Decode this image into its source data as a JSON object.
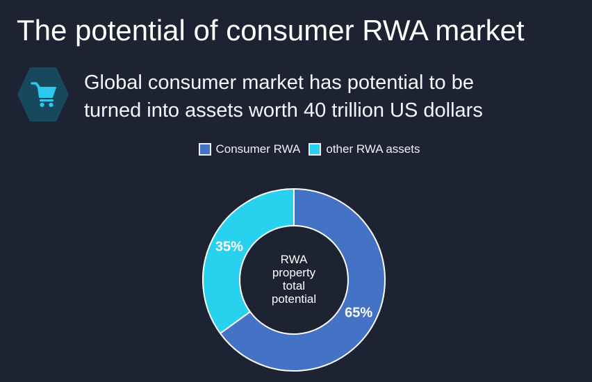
{
  "slide": {
    "background": "#1E2333",
    "title": "The potential of consumer RWA market",
    "subtitle_line1": "Global consumer market has potential to be",
    "subtitle_line2": "turned into assets worth 40 trillion US dollars"
  },
  "icon": {
    "name": "shopping-cart",
    "hexagon_fill": "#16485E",
    "glyph_color": "#2BC9EB"
  },
  "legend": [
    {
      "label": "Consumer RWA",
      "color": "#4472C4"
    },
    {
      "label": "other RWA assets",
      "color": "#28D2EE"
    }
  ],
  "chart_data": {
    "type": "pie",
    "subtype": "donut",
    "categories": [
      "Consumer RWA",
      "other RWA assets"
    ],
    "values": [
      65,
      35
    ],
    "labels": [
      "65%",
      "35%"
    ],
    "colors": [
      "#4472C4",
      "#28D2EE"
    ],
    "unit": "percent",
    "center_label": "RWA\nproperty\ntotal\npotential",
    "start_angle_deg": 0,
    "direction": "clockwise",
    "inner_radius_ratio": 0.595,
    "outer_radius_px": 131,
    "slice_stroke_color": "#ffffff",
    "legend_position": "top"
  }
}
